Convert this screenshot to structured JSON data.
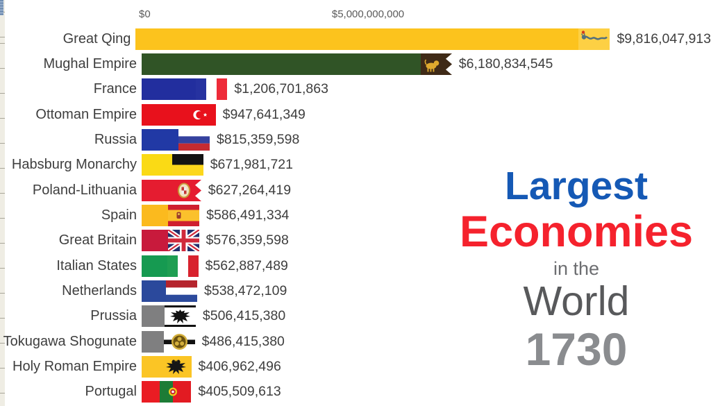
{
  "chart_data": {
    "type": "bar",
    "orientation": "horizontal",
    "title": "Largest Economies in the World",
    "year": "1730",
    "unit": "USD",
    "axis": {
      "ticks": [
        {
          "label": "$0",
          "value": 0
        },
        {
          "label": "$5,000,000,000",
          "value": 5000000000
        }
      ],
      "xlim": [
        0,
        12600000000
      ],
      "grid": false
    },
    "legend": "none",
    "rows": [
      {
        "label": "Great Qing",
        "value": 9816047913,
        "value_label": "$9,816,047,913",
        "bar_color": "#fcc31d",
        "flag": "qing"
      },
      {
        "label": "Mughal Empire",
        "value": 6180834545,
        "value_label": "$6,180,834,545",
        "bar_color": "#305426",
        "flag": "mughal"
      },
      {
        "label": "France",
        "value": 1206701863,
        "value_label": "$1,206,701,863",
        "bar_color": "#222e9e",
        "flag": "france"
      },
      {
        "label": "Ottoman Empire",
        "value": 947641349,
        "value_label": "$947,641,349",
        "bar_color": "#e8111c",
        "flag": "ottoman"
      },
      {
        "label": "Russia",
        "value": 815359598,
        "value_label": "$815,359,598",
        "bar_color": "#2139a5",
        "flag": "russia"
      },
      {
        "label": "Habsburg Monarchy",
        "value": 671981721,
        "value_label": "$671,981,721",
        "bar_color": "#fada15",
        "flag": "habsburg"
      },
      {
        "label": "Poland-Lithuania",
        "value": 627264419,
        "value_label": "$627,264,419",
        "bar_color": "#e51c30",
        "flag": "poland"
      },
      {
        "label": "Spain",
        "value": 586491334,
        "value_label": "$586,491,334",
        "bar_color": "#fbba1e",
        "flag": "spain"
      },
      {
        "label": "Great Britain",
        "value": 576359598,
        "value_label": "$576,359,598",
        "bar_color": "#c81a3c",
        "flag": "gb"
      },
      {
        "label": "Italian States",
        "value": 562887489,
        "value_label": "$562,887,489",
        "bar_color": "#169a51",
        "flag": "italy"
      },
      {
        "label": "Netherlands",
        "value": 538472109,
        "value_label": "$538,472,109",
        "bar_color": "#2b499c",
        "flag": "netherlands"
      },
      {
        "label": "Prussia",
        "value": 506415380,
        "value_label": "$506,415,380",
        "bar_color": "#7f7f80",
        "flag": "prussia"
      },
      {
        "label": "Tokugawa Shogunate",
        "value": 486415380,
        "value_label": "$486,415,380",
        "bar_color": "#7f7f80",
        "flag": "tokugawa"
      },
      {
        "label": "Holy Roman Empire",
        "value": 406962496,
        "value_label": "$406,962,496",
        "bar_color": "#fbc525",
        "flag": "hre"
      },
      {
        "label": "Portugal",
        "value": 405509613,
        "value_label": "$405,509,613",
        "bar_color": "#ea1c23",
        "flag": "portugal"
      }
    ]
  },
  "title_block": {
    "line1": {
      "text": "Largest",
      "color": "#1559b5"
    },
    "line2": {
      "text": "Economies",
      "color": "#f5222d"
    },
    "line3": {
      "text": "in the",
      "color": "#6d6e71"
    },
    "line4": {
      "text": "World",
      "color": "#58595b"
    },
    "year": {
      "text": "1730",
      "color": "#8a8c8f"
    }
  }
}
